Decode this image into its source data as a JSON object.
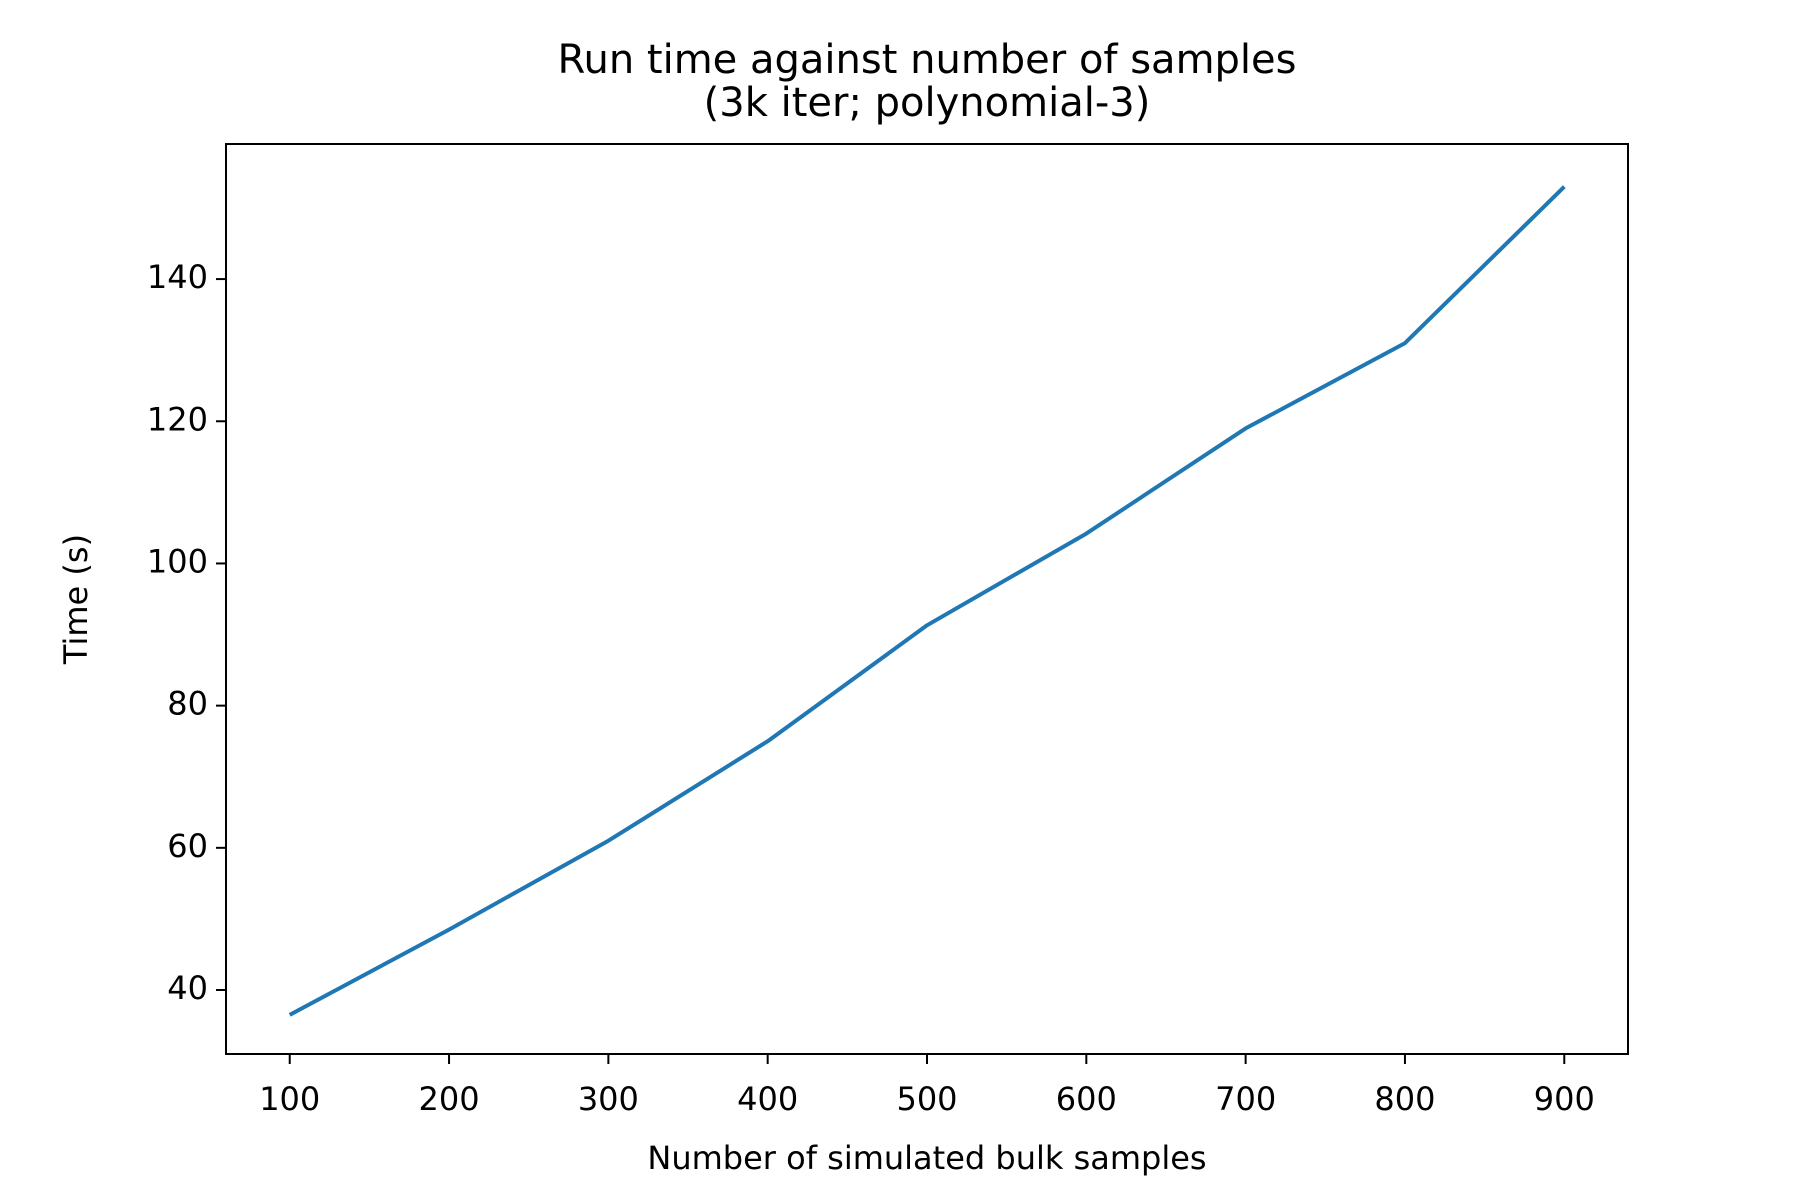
{
  "chart_data": {
    "type": "line",
    "title": "Run time against number of samples",
    "subtitle": "(3k iter; polynomial-3)",
    "xlabel": "Number of simulated bulk samples",
    "ylabel": "Time (s)",
    "xlim": [
      60,
      940
    ],
    "ylim": [
      31,
      159
    ],
    "xticks": [
      100,
      200,
      300,
      400,
      500,
      600,
      700,
      800,
      900
    ],
    "yticks": [
      40,
      60,
      80,
      100,
      120,
      140
    ],
    "grid": false,
    "series_color": "#1f77b4",
    "series": [
      {
        "x": [
          100,
          200,
          300,
          400,
          500,
          600,
          700,
          800,
          900
        ],
        "values": [
          36.5,
          48.5,
          61,
          75,
          91.3,
          104.2,
          119,
          131,
          153
        ]
      }
    ]
  }
}
